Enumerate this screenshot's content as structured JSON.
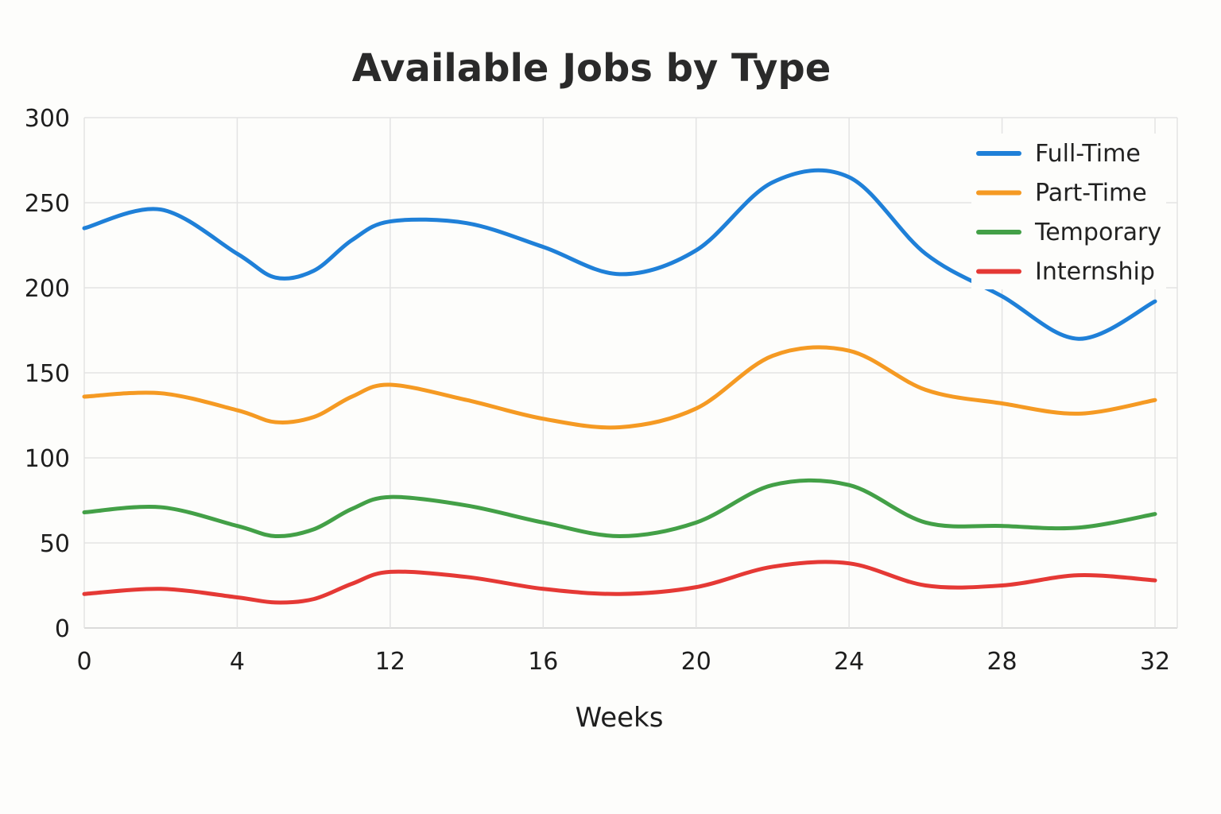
{
  "chart_data": {
    "type": "line",
    "title": "Available Jobs by Type",
    "xlabel": "Weeks",
    "ylabel": "",
    "xlim": [
      0,
      32
    ],
    "ylim": [
      0,
      300
    ],
    "x_ticks": [
      0,
      4,
      12,
      16,
      20,
      24,
      28,
      32
    ],
    "y_ticks": [
      0,
      50,
      100,
      150,
      200,
      250,
      300
    ],
    "grid": true,
    "legend_position": "top-right",
    "x": [
      0,
      2,
      4,
      6,
      8,
      10,
      12,
      14,
      16,
      18,
      20,
      22,
      24,
      26,
      28,
      30,
      32
    ],
    "series": [
      {
        "name": "Full-Time",
        "color": "#1f80d8",
        "values": [
          235,
          246,
          220,
          206,
          210,
          228,
          239,
          238,
          224,
          208,
          222,
          262,
          265,
          220,
          195,
          170,
          192
        ]
      },
      {
        "name": "Part-Time",
        "color": "#f59a23",
        "values": [
          136,
          138,
          128,
          121,
          124,
          136,
          143,
          134,
          123,
          118,
          129,
          160,
          163,
          140,
          132,
          126,
          134
        ]
      },
      {
        "name": "Temporary",
        "color": "#43a047",
        "values": [
          68,
          71,
          60,
          54,
          58,
          70,
          77,
          72,
          62,
          54,
          62,
          84,
          84,
          62,
          60,
          59,
          67
        ]
      },
      {
        "name": "Internship",
        "color": "#e53935",
        "values": [
          20,
          23,
          18,
          15,
          17,
          26,
          33,
          30,
          23,
          20,
          24,
          36,
          38,
          25,
          25,
          31,
          28
        ]
      }
    ]
  }
}
